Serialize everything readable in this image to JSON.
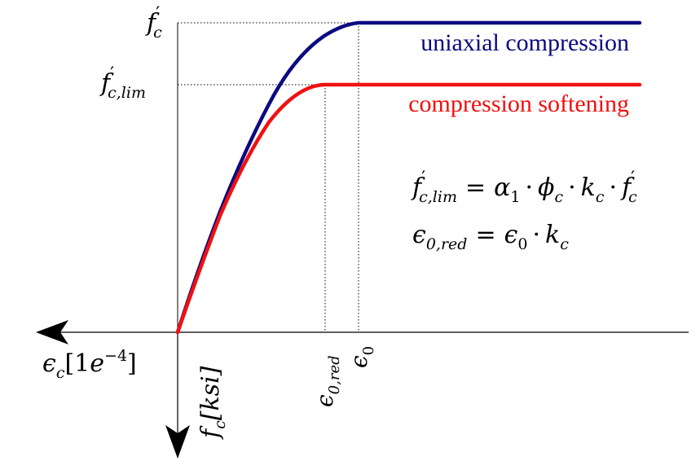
{
  "colors": {
    "uniaxial": "#0a0a80",
    "softening": "#f01010",
    "axis": "#000000",
    "guide": "#000000"
  },
  "axes": {
    "x_label_base": "ϵ",
    "x_label_sub": "c",
    "x_label_unit_open": "[1",
    "x_label_unit_e": "e",
    "x_label_unit_exp": "−4",
    "x_label_unit_close": "]",
    "y_label_base": "f",
    "y_label_sub": "c",
    "y_label_unit": "[ksi]"
  },
  "levels": {
    "fc_base": "f",
    "fc_prime": "′",
    "fc_sub": "c",
    "fclim_base": "f",
    "fclim_prime": "′",
    "fclim_sub": "c,lim"
  },
  "strains": {
    "e0red_base": "ϵ",
    "e0red_sub": "0,red",
    "e0_base": "ϵ",
    "e0_sub": "0"
  },
  "legend": {
    "uniaxial": "uniaxial compression",
    "softening": "compression softening"
  },
  "equations": {
    "eq1_lhs_base": "f",
    "eq1_lhs_prime": "′",
    "eq1_lhs_sub": "c,lim",
    "eq1_eq": "=",
    "eq1_alpha": "α",
    "eq1_alpha_sub": "1",
    "eq1_dot1": "·",
    "eq1_phi": "ϕ",
    "eq1_phi_sub": "c",
    "eq1_dot2": "·",
    "eq1_k": "k",
    "eq1_k_sub": "c",
    "eq1_dot3": "·",
    "eq1_f": "f",
    "eq1_f_prime": "′",
    "eq1_f_sub": "c",
    "eq2_lhs_base": "ϵ",
    "eq2_lhs_sub": "0,red",
    "eq2_eq": "=",
    "eq2_eps": "ϵ",
    "eq2_eps_sub": "0",
    "eq2_dot": "·",
    "eq2_k": "k",
    "eq2_k_sub": "c"
  }
}
